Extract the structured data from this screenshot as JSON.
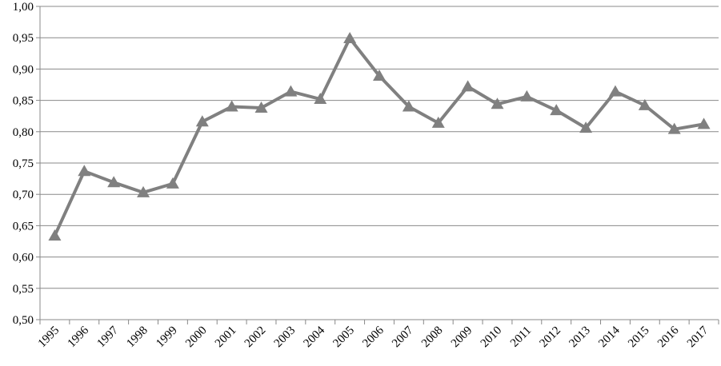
{
  "chart_data": {
    "type": "line",
    "categories": [
      "1995",
      "1996",
      "1997",
      "1998",
      "1999",
      "2000",
      "2001",
      "2002",
      "2003",
      "2004",
      "2005",
      "2006",
      "2007",
      "2008",
      "2009",
      "2010",
      "2011",
      "2012",
      "2013",
      "2014",
      "2015",
      "2016",
      "2017"
    ],
    "series": [
      {
        "color": "#808080",
        "values": [
          0.634,
          0.737,
          0.719,
          0.703,
          0.717,
          0.816,
          0.84,
          0.838,
          0.864,
          0.852,
          0.949,
          0.889,
          0.84,
          0.814,
          0.872,
          0.844,
          0.856,
          0.834,
          0.806,
          0.864,
          0.842,
          0.804,
          0.812
        ]
      }
    ],
    "ylim": [
      0.5,
      1.0
    ],
    "yticks": [
      {
        "value": 0.5,
        "label": "0,50"
      },
      {
        "value": 0.55,
        "label": "0,55"
      },
      {
        "value": 0.6,
        "label": "0,60"
      },
      {
        "value": 0.65,
        "label": "0,65"
      },
      {
        "value": 0.7,
        "label": "0,70"
      },
      {
        "value": 0.75,
        "label": "0,75"
      },
      {
        "value": 0.8,
        "label": "0,80"
      },
      {
        "value": 0.85,
        "label": "0,85"
      },
      {
        "value": 0.9,
        "label": "0,90"
      },
      {
        "value": 0.95,
        "label": "0,95"
      },
      {
        "value": 1.0,
        "label": "1,00"
      }
    ],
    "grid": true,
    "marker": "triangle"
  }
}
